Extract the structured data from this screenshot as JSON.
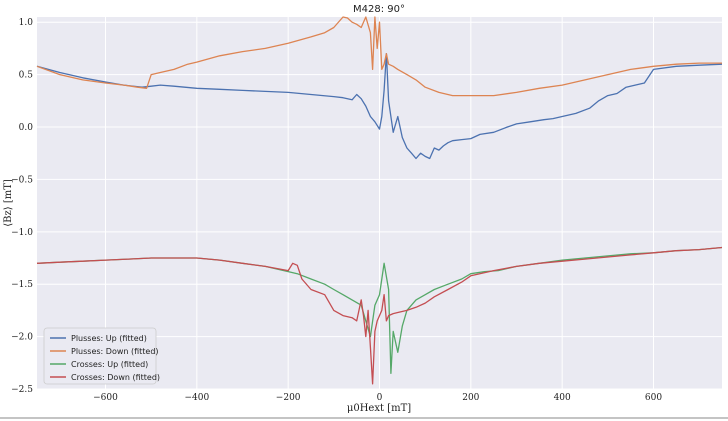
{
  "chart_data": {
    "type": "line",
    "title": "M428: 90°",
    "xlabel": "μ0Hext [mT]",
    "ylabel": "⟨Bz⟩ [mT]",
    "xlim": [
      -750,
      750
    ],
    "ylim": [
      -2.5,
      1.05
    ],
    "xticks": [
      -600,
      -400,
      -200,
      0,
      200,
      400,
      600
    ],
    "yticks": [
      1.0,
      0.5,
      0.0,
      -0.5,
      -1.0,
      -1.5,
      -2.0,
      -2.5
    ],
    "xtick_labels": [
      "−600",
      "−400",
      "−200",
      "0",
      "200",
      "400",
      "600"
    ],
    "ytick_labels": [
      "1.0",
      "0.5",
      "0.0",
      "−0.5",
      "−1.0",
      "−1.5",
      "−2.0",
      "−2.5"
    ],
    "grid": true,
    "legend_position": "lower-left",
    "background": "#eaeaf2",
    "series": [
      {
        "name": "Plusses: Up (fitted)",
        "color": "#4c72b0",
        "x": [
          -750,
          -700,
          -650,
          -600,
          -560,
          -520,
          -500,
          -480,
          -450,
          -400,
          -350,
          -300,
          -250,
          -200,
          -150,
          -100,
          -80,
          -60,
          -50,
          -40,
          -30,
          -20,
          -10,
          0,
          5,
          10,
          15,
          20,
          30,
          40,
          50,
          60,
          70,
          80,
          90,
          100,
          110,
          120,
          130,
          140,
          150,
          160,
          180,
          200,
          220,
          250,
          280,
          300,
          330,
          360,
          380,
          400,
          430,
          460,
          480,
          500,
          520,
          540,
          560,
          580,
          600,
          650,
          700,
          750
        ],
        "y": [
          0.58,
          0.52,
          0.47,
          0.43,
          0.4,
          0.38,
          0.39,
          0.4,
          0.39,
          0.37,
          0.36,
          0.35,
          0.34,
          0.33,
          0.31,
          0.29,
          0.28,
          0.26,
          0.31,
          0.27,
          0.2,
          0.1,
          0.05,
          -0.02,
          0.1,
          0.35,
          0.7,
          0.25,
          -0.05,
          0.1,
          -0.1,
          -0.2,
          -0.25,
          -0.3,
          -0.25,
          -0.28,
          -0.3,
          -0.2,
          -0.22,
          -0.18,
          -0.15,
          -0.13,
          -0.12,
          -0.11,
          -0.07,
          -0.05,
          0.0,
          0.03,
          0.05,
          0.07,
          0.08,
          0.1,
          0.13,
          0.18,
          0.25,
          0.3,
          0.32,
          0.38,
          0.4,
          0.42,
          0.55,
          0.58,
          0.59,
          0.6
        ]
      },
      {
        "name": "Plusses: Down (fitted)",
        "color": "#dd8452",
        "x": [
          -750,
          -700,
          -650,
          -600,
          -560,
          -530,
          -510,
          -500,
          -480,
          -450,
          -420,
          -400,
          -350,
          -300,
          -250,
          -200,
          -150,
          -120,
          -100,
          -80,
          -70,
          -60,
          -50,
          -40,
          -30,
          -20,
          -15,
          -10,
          -5,
          0,
          5,
          10,
          15,
          20,
          30,
          40,
          60,
          80,
          100,
          130,
          160,
          200,
          250,
          300,
          350,
          400,
          450,
          500,
          550,
          600,
          650,
          700,
          750
        ],
        "y": [
          0.58,
          0.5,
          0.45,
          0.42,
          0.4,
          0.38,
          0.37,
          0.5,
          0.52,
          0.55,
          0.6,
          0.62,
          0.68,
          0.72,
          0.75,
          0.8,
          0.86,
          0.9,
          0.95,
          1.05,
          1.04,
          1.0,
          0.98,
          0.95,
          1.05,
          0.9,
          0.55,
          1.05,
          0.75,
          1.0,
          0.55,
          0.6,
          0.7,
          0.6,
          0.58,
          0.55,
          0.5,
          0.45,
          0.38,
          0.33,
          0.3,
          0.3,
          0.3,
          0.33,
          0.37,
          0.4,
          0.45,
          0.5,
          0.55,
          0.58,
          0.6,
          0.61,
          0.61
        ]
      },
      {
        "name": "Crosses: Up (fitted)",
        "color": "#55a868",
        "x": [
          -750,
          -700,
          -650,
          -600,
          -550,
          -500,
          -450,
          -400,
          -350,
          -300,
          -250,
          -200,
          -180,
          -150,
          -120,
          -100,
          -80,
          -60,
          -40,
          -30,
          -20,
          -10,
          0,
          10,
          20,
          25,
          30,
          40,
          50,
          60,
          80,
          100,
          120,
          150,
          180,
          200,
          230,
          260,
          300,
          350,
          400,
          450,
          500,
          550,
          600,
          650,
          700,
          750
        ],
        "y": [
          -1.3,
          -1.29,
          -1.28,
          -1.27,
          -1.26,
          -1.25,
          -1.25,
          -1.25,
          -1.27,
          -1.3,
          -1.33,
          -1.38,
          -1.4,
          -1.45,
          -1.5,
          -1.55,
          -1.6,
          -1.65,
          -1.7,
          -1.85,
          -2.0,
          -1.7,
          -1.6,
          -1.3,
          -1.55,
          -2.35,
          -1.95,
          -2.15,
          -1.9,
          -1.75,
          -1.65,
          -1.6,
          -1.55,
          -1.5,
          -1.45,
          -1.4,
          -1.38,
          -1.37,
          -1.33,
          -1.3,
          -1.27,
          -1.25,
          -1.23,
          -1.21,
          -1.2,
          -1.18,
          -1.17,
          -1.15
        ]
      },
      {
        "name": "Crosses: Down (fitted)",
        "color": "#c44e52",
        "x": [
          -750,
          -700,
          -650,
          -600,
          -550,
          -500,
          -450,
          -400,
          -350,
          -300,
          -250,
          -200,
          -190,
          -180,
          -170,
          -150,
          -120,
          -100,
          -80,
          -60,
          -50,
          -40,
          -35,
          -30,
          -25,
          -20,
          -15,
          -10,
          -5,
          0,
          5,
          10,
          15,
          20,
          30,
          40,
          60,
          80,
          100,
          120,
          150,
          180,
          200,
          250,
          300,
          350,
          400,
          450,
          500,
          550,
          600,
          650,
          700,
          750
        ],
        "y": [
          -1.3,
          -1.29,
          -1.28,
          -1.27,
          -1.26,
          -1.25,
          -1.25,
          -1.25,
          -1.27,
          -1.3,
          -1.33,
          -1.37,
          -1.3,
          -1.32,
          -1.45,
          -1.55,
          -1.6,
          -1.75,
          -1.8,
          -1.82,
          -1.85,
          -1.65,
          -1.8,
          -2.0,
          -1.75,
          -2.1,
          -2.45,
          -1.95,
          -1.85,
          -1.8,
          -1.75,
          -1.6,
          -1.85,
          -1.8,
          -1.78,
          -1.77,
          -1.75,
          -1.72,
          -1.68,
          -1.62,
          -1.55,
          -1.48,
          -1.42,
          -1.37,
          -1.33,
          -1.3,
          -1.28,
          -1.26,
          -1.24,
          -1.22,
          -1.2,
          -1.18,
          -1.17,
          -1.15
        ]
      }
    ]
  }
}
